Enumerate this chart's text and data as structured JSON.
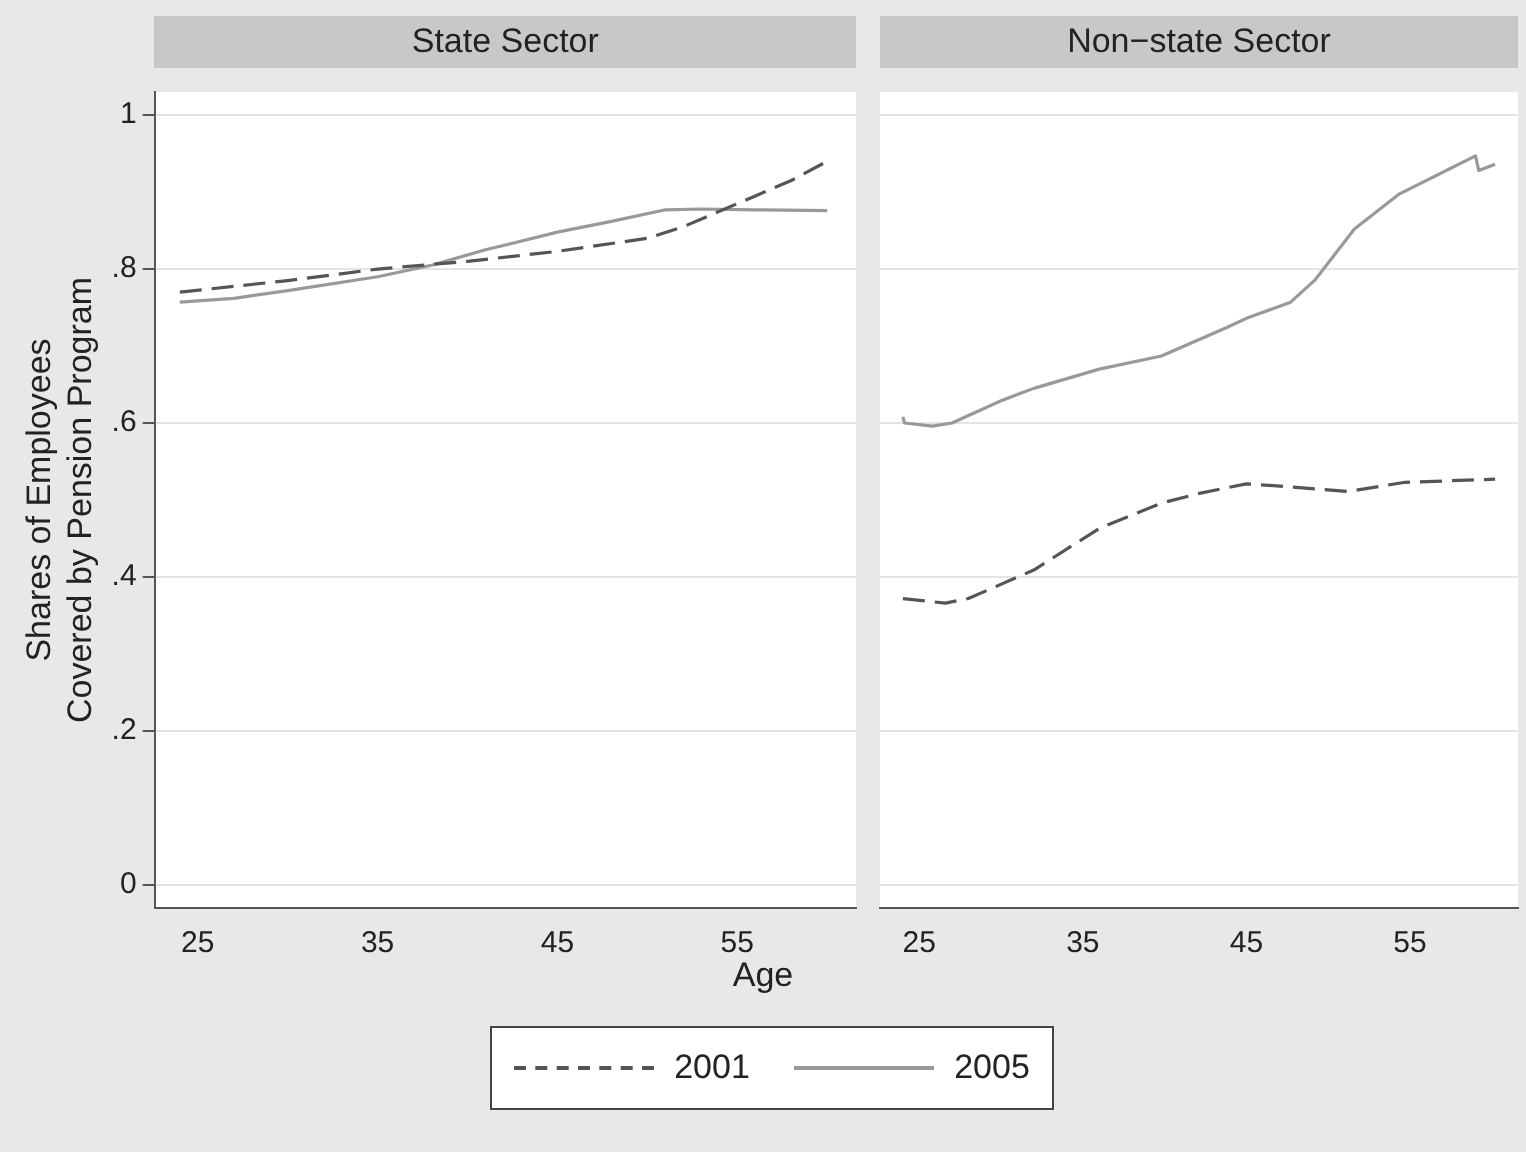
{
  "chart_data": [
    {
      "type": "line",
      "title": "State Sector",
      "xlabel": "Age",
      "ylabel": "Shares of Employees\nCovered by Pension Program",
      "xlim": [
        22.6,
        61.6
      ],
      "xticks": [
        25,
        35,
        45,
        55
      ],
      "ylim": [
        -0.03,
        1.03
      ],
      "yticks": [
        {
          "value": 0,
          "label": "0"
        },
        {
          "value": 0.2,
          "label": ".2"
        },
        {
          "value": 0.4,
          "label": ".4"
        },
        {
          "value": 0.6,
          "label": ".6"
        },
        {
          "value": 0.8,
          "label": ".8"
        },
        {
          "value": 1,
          "label": "1"
        }
      ],
      "grid": "y",
      "legend": "bottom",
      "marker": "none",
      "series": [
        {
          "name": "2001",
          "color": "#555555",
          "line_style": "dashed",
          "x": [
            24,
            30,
            35,
            40,
            45,
            50,
            52,
            55,
            58,
            60
          ],
          "values": [
            0.77,
            0.785,
            0.8,
            0.81,
            0.823,
            0.84,
            0.855,
            0.885,
            0.915,
            0.94
          ]
        },
        {
          "name": "2005",
          "color": "#999999",
          "line_style": "solid",
          "x": [
            24,
            27,
            30,
            35,
            38,
            41,
            45,
            48,
            51,
            53,
            56,
            60
          ],
          "values": [
            0.757,
            0.762,
            0.772,
            0.79,
            0.805,
            0.825,
            0.848,
            0.862,
            0.877,
            0.878,
            0.877,
            0.876
          ]
        }
      ]
    },
    {
      "type": "line",
      "title": "Non−state Sector",
      "xlim": [
        22.6,
        61.6
      ],
      "xticks": [
        25,
        35,
        45,
        55
      ],
      "ylim": [
        -0.03,
        1.03
      ],
      "yticks": [
        {
          "value": 0,
          "label": null
        },
        {
          "value": 0.2,
          "label": null
        },
        {
          "value": 0.4,
          "label": null
        },
        {
          "value": 0.6,
          "label": null
        },
        {
          "value": 0.8,
          "label": null
        },
        {
          "value": 1,
          "label": null
        }
      ],
      "tick_labels": "x",
      "grid": "y",
      "marker": "none",
      "series": [
        {
          "name": "2001",
          "color": "#555555",
          "line_style": "dashed",
          "x": [
            24,
            26.6,
            28,
            32,
            36,
            39.8,
            42.2,
            45,
            47.7,
            51.2,
            54.7,
            60.2
          ],
          "values": [
            0.372,
            0.366,
            0.372,
            0.409,
            0.463,
            0.496,
            0.509,
            0.521,
            0.517,
            0.511,
            0.523,
            0.527
          ]
        },
        {
          "name": "2005",
          "color": "#999999",
          "line_style": "solid",
          "x": [
            24,
            24.1,
            25.8,
            27,
            30,
            32,
            36,
            39.8,
            43.8,
            45,
            47.7,
            49.2,
            51.6,
            54.3,
            57.4,
            59,
            59.2,
            60.2
          ],
          "values": [
            0.608,
            0.6,
            0.596,
            0.6,
            0.629,
            0.645,
            0.67,
            0.687,
            0.724,
            0.736,
            0.757,
            0.786,
            0.852,
            0.897,
            0.93,
            0.947,
            0.928,
            0.936
          ]
        }
      ]
    }
  ]
}
